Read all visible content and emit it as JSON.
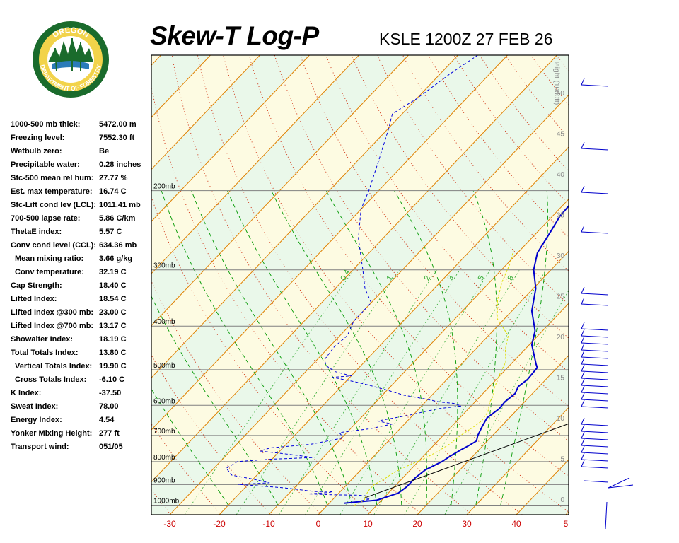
{
  "header": {
    "title": "Skew-T Log-P",
    "station": "KSLE 1200Z 27 FEB 26",
    "logo_text_top": "OREGON",
    "logo_text_bottom": "DEPARTMENT OF FORESTRY"
  },
  "indices": [
    {
      "label": "1000-500 mb thick:",
      "value": "5472.00 m",
      "indent": false
    },
    {
      "label": "Freezing level:",
      "value": "7552.30 ft",
      "indent": false
    },
    {
      "label": "Wetbulb zero:",
      "value": "Be",
      "indent": false
    },
    {
      "label": "Precipitable water:",
      "value": "0.28 inches",
      "indent": false
    },
    {
      "label": "Sfc-500 mean rel hum:",
      "value": "27.77 %",
      "indent": false
    },
    {
      "label": "Est. max temperature:",
      "value": "16.74 C",
      "indent": false
    },
    {
      "label": "Sfc-Lift cond lev (LCL):",
      "value": "1011.41 mb",
      "indent": false
    },
    {
      "label": "700-500 lapse rate:",
      "value": "5.86 C/km",
      "indent": false
    },
    {
      "label": "ThetaE index:",
      "value": "5.57 C",
      "indent": false
    },
    {
      "label": "Conv cond level (CCL):",
      "value": "634.36 mb",
      "indent": false
    },
    {
      "label": "Mean mixing ratio:",
      "value": "3.66 g/kg",
      "indent": true
    },
    {
      "label": "Conv temperature:",
      "value": "32.19 C",
      "indent": true
    },
    {
      "label": "Cap Strength:",
      "value": "18.40 C",
      "indent": false
    },
    {
      "label": "Lifted Index:",
      "value": "18.54 C",
      "indent": false
    },
    {
      "label": "Lifted Index @300 mb:",
      "value": "23.00 C",
      "indent": false
    },
    {
      "label": "Lifted Index @700 mb:",
      "value": "13.17 C",
      "indent": false
    },
    {
      "label": "Showalter Index:",
      "value": "18.19 C",
      "indent": false
    },
    {
      "label": "Total Totals Index:",
      "value": "13.80 C",
      "indent": false
    },
    {
      "label": "Vertical Totals Index:",
      "value": "19.90 C",
      "indent": true
    },
    {
      "label": "Cross Totals Index:",
      "value": "-6.10 C",
      "indent": true
    },
    {
      "label": "K Index:",
      "value": "-37.50",
      "indent": false
    },
    {
      "label": "Sweat Index:",
      "value": "78.00",
      "indent": false
    },
    {
      "label": "Energy Index:",
      "value": "4.54",
      "indent": false
    },
    {
      "label": "Yonker Mixing Height:",
      "value": "277 ft",
      "indent": false
    },
    {
      "label": "Transport wind:",
      "value": "051/05",
      "indent": false
    }
  ],
  "chart_data": {
    "type": "line",
    "chart_kind": "skew-t log-p",
    "x_axis": {
      "label": "",
      "ticks": [
        "-30",
        "-20",
        "-10",
        "0",
        "10",
        "20",
        "30",
        "40",
        "5"
      ],
      "range": [
        -33,
        50
      ],
      "unit": "C"
    },
    "pressure_labels": [
      "200mb",
      "300mb",
      "400mb",
      "500mb",
      "600mb",
      "700mb",
      "800mb",
      "900mb",
      "1000mb"
    ],
    "height_axis": {
      "label": "Height (1000ft)",
      "ticks": [
        "0",
        "5",
        "10",
        "15",
        "20",
        "25",
        "30",
        "35",
        "40",
        "45",
        "50"
      ]
    },
    "mixing_ratio_labels": [
      "0.4",
      "1",
      "2",
      "3",
      "5",
      "8"
    ],
    "colors": {
      "temperature": "#0000cc",
      "dewpoint": "#0000dd",
      "parcel": "#dddd00",
      "isotherm": "#e08000",
      "dry_adiabat": "#cc2200",
      "moist_adiabat": "#009900",
      "mixing_ratio": "#33aa33",
      "isobar": "#808080",
      "band_green": "#eaf8ea",
      "band_yellow": "#fdfbe2",
      "x_tick_label": "#cc0000"
    },
    "series": [
      {
        "key": "temperature",
        "points": [
          [
            3.0,
            990
          ],
          [
            6.0,
            982
          ],
          [
            9.0,
            975
          ],
          [
            12.0,
            940
          ],
          [
            12.5,
            910
          ],
          [
            12.5,
            870
          ],
          [
            13.0,
            835
          ],
          [
            14.8,
            800
          ],
          [
            15.5,
            775
          ],
          [
            16.3,
            755
          ],
          [
            17.0,
            740
          ],
          [
            17.8,
            720
          ],
          [
            17.0,
            700
          ],
          [
            16.2,
            670
          ],
          [
            15.5,
            640
          ],
          [
            16.2,
            610
          ],
          [
            16.0,
            590
          ],
          [
            16.5,
            565
          ],
          [
            15.8,
            545
          ],
          [
            16.3,
            525
          ],
          [
            16.0,
            495
          ],
          [
            15.0,
            485
          ],
          [
            10.5,
            440
          ],
          [
            8.5,
            410
          ],
          [
            4.0,
            370
          ],
          [
            0.5,
            330
          ],
          [
            -3.5,
            300
          ],
          [
            -6.0,
            275
          ],
          [
            -7.5,
            245
          ],
          [
            -8.5,
            228
          ],
          [
            -9.0,
            200
          ],
          [
            -2.0,
            170
          ],
          [
            3.5,
            150
          ],
          [
            5.5,
            125
          ],
          [
            8.0,
            102
          ]
        ]
      },
      {
        "key": "dewpoint",
        "points": [
          [
            3.5,
            990
          ],
          [
            7.5,
            970
          ],
          [
            6.5,
            965
          ],
          [
            6.0,
            953
          ],
          [
            4.0,
            950
          ],
          [
            -1.0,
            948
          ],
          [
            -6.0,
            944
          ],
          [
            -2.0,
            937
          ],
          [
            -1.5,
            932
          ],
          [
            -5.0,
            933
          ],
          [
            -12.0,
            915
          ],
          [
            -22.0,
            899
          ],
          [
            -16.0,
            892
          ],
          [
            -20.0,
            875
          ],
          [
            -25.0,
            858
          ],
          [
            -27.5,
            828
          ],
          [
            -26.5,
            800
          ],
          [
            -20.0,
            790
          ],
          [
            -12.0,
            784
          ],
          [
            -16.0,
            774
          ],
          [
            -24.0,
            758
          ],
          [
            -22.5,
            746
          ],
          [
            -15.0,
            732
          ],
          [
            -10.0,
            710
          ],
          [
            -10.5,
            700
          ],
          [
            -11.5,
            690
          ],
          [
            -6.0,
            676
          ],
          [
            -2.5,
            660
          ],
          [
            -6.0,
            650
          ],
          [
            -0.5,
            630
          ],
          [
            2.0,
            618
          ],
          [
            4.0,
            610
          ],
          [
            8.0,
            602
          ],
          [
            6.0,
            594
          ],
          [
            3.0,
            590
          ],
          [
            -1.0,
            580
          ],
          [
            -5.5,
            570
          ],
          [
            -10.0,
            555
          ],
          [
            -15.0,
            540
          ],
          [
            -18.0,
            532
          ],
          [
            -23.5,
            520
          ],
          [
            -20.0,
            516
          ],
          [
            -24.0,
            505
          ],
          [
            -27.0,
            490
          ],
          [
            -28.5,
            475
          ],
          [
            -29.0,
            445
          ],
          [
            -28.5,
            420
          ],
          [
            -30.0,
            390
          ],
          [
            -30.0,
            355
          ],
          [
            -34.0,
            330
          ],
          [
            -38.0,
            300
          ],
          [
            -45.0,
            255
          ],
          [
            -50.0,
            220
          ],
          [
            -52.0,
            200
          ],
          [
            -56.0,
            170
          ],
          [
            -60.0,
            145
          ],
          [
            -62.0,
            135
          ],
          [
            -60.0,
            125
          ],
          [
            -58.0,
            110
          ],
          [
            -56.0,
            100
          ]
        ]
      },
      {
        "key": "parcel",
        "points": [
          [
            5.5,
            1000
          ],
          [
            6.5,
            975
          ],
          [
            6.0,
            955
          ],
          [
            5.5,
            930
          ],
          [
            5.5,
            900
          ],
          [
            6.5,
            875
          ],
          [
            7.0,
            850
          ],
          [
            8.5,
            820
          ],
          [
            10.5,
            790
          ],
          [
            12.0,
            760
          ],
          [
            13.0,
            730
          ],
          [
            13.5,
            700
          ],
          [
            14.5,
            670
          ],
          [
            15.0,
            650
          ],
          [
            14.5,
            620
          ],
          [
            13.0,
            590
          ],
          [
            12.5,
            570
          ],
          [
            11.5,
            555
          ],
          [
            10.0,
            520
          ],
          [
            8.5,
            480
          ],
          [
            6.0,
            450
          ],
          [
            4.0,
            420
          ],
          [
            -1.5,
            385
          ],
          [
            -5.0,
            350
          ],
          [
            -7.5,
            320
          ],
          [
            -9.5,
            290
          ],
          [
            -11.5,
            270
          ]
        ]
      },
      {
        "key": "env_lapse_line",
        "points": [
          [
            6.0,
            965
          ],
          [
            50.0,
            520
          ]
        ]
      }
    ],
    "wind_barbs_note": "wind profile barbs drawn at right edge"
  }
}
